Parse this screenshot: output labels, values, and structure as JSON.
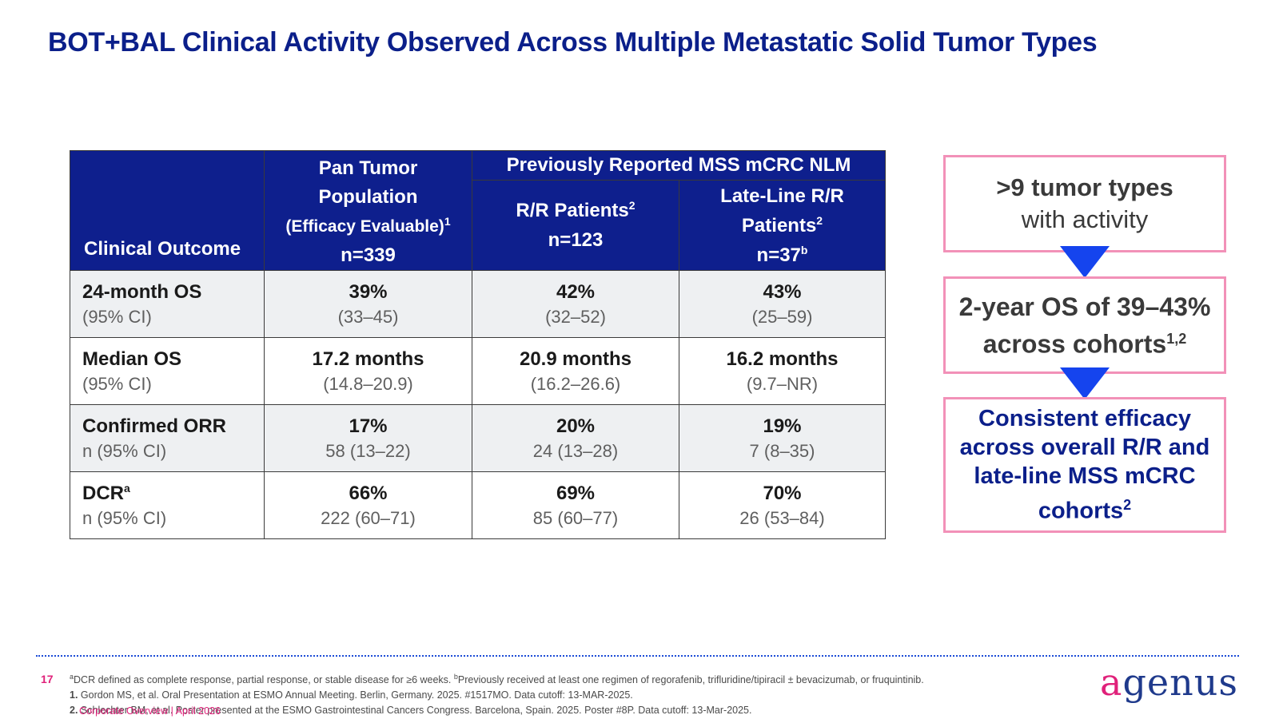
{
  "title": "BOT+BAL Clinical Activity Observed Across Multiple Metastatic Solid Tumor Types",
  "table": {
    "header": {
      "outcome": "Clinical Outcome",
      "pan_tumor": {
        "line1": "Pan Tumor",
        "line2": "Population",
        "line3": "(Efficacy Evaluable)",
        "line3_sup": "1",
        "n": "n=339"
      },
      "group": "Previously Reported MSS mCRC NLM",
      "rr": {
        "line1": "R/R Patients",
        "line1_sup": "2",
        "n": "n=123"
      },
      "late": {
        "line1": "Late-Line R/R",
        "line2": "Patients",
        "line2_sup": "2",
        "n": "n=37",
        "n_sup": "b"
      }
    },
    "rows": [
      {
        "label": "24-month OS",
        "sublabel": "(95% CI)",
        "label_sup": "",
        "pan": {
          "main": "39%",
          "ci": "(33–45)"
        },
        "rr": {
          "main": "42%",
          "ci": "(32–52)"
        },
        "late": {
          "main": "43%",
          "ci": "(25–59)"
        }
      },
      {
        "label": "Median OS",
        "sublabel": "(95% CI)",
        "label_sup": "",
        "pan": {
          "main": "17.2 months",
          "ci": "(14.8–20.9)"
        },
        "rr": {
          "main": "20.9 months",
          "ci": "(16.2–26.6)"
        },
        "late": {
          "main": "16.2 months",
          "ci": "(9.7–NR)"
        }
      },
      {
        "label": "Confirmed ORR",
        "sublabel": "n (95% CI)",
        "label_sup": "",
        "pan": {
          "main": "17%",
          "ci": "58 (13–22)"
        },
        "rr": {
          "main": "20%",
          "ci": "24 (13–28)"
        },
        "late": {
          "main": "19%",
          "ci": "7 (8–35)"
        }
      },
      {
        "label": "DCR",
        "sublabel": "n (95% CI)",
        "label_sup": "a",
        "pan": {
          "main": "66%",
          "ci": "222 (60–71)"
        },
        "rr": {
          "main": "69%",
          "ci": "85 (60–77)"
        },
        "late": {
          "main": "70%",
          "ci": "26 (53–84)"
        }
      }
    ]
  },
  "callouts": {
    "first": {
      "line1": ">9 tumor types",
      "line2": "with activity"
    },
    "second": {
      "line1": "2-year OS of 39–43%",
      "line2": "across cohorts",
      "line2_sup": "1,2"
    },
    "third": {
      "text": "Consistent efficacy across overall R/R and late-line MSS mCRC cohorts",
      "sup": "2"
    }
  },
  "footer": {
    "page_number": "17",
    "note_a_sup": "a",
    "note_a": "DCR defined as complete response, partial response, or stable disease for ≥6 weeks. ",
    "note_b_sup": "b",
    "note_b": "Previously received at least one regimen of regorafenib, trifluridine/tipiracil ± bevacizumab, or fruquintinib.",
    "ref1_num": "1.",
    "ref1": " Gordon MS, et al. Oral Presentation at ESMO Annual Meeting. Berlin, Germany. 2025. #1517MO. Data cutoff: 13-MAR-2025.",
    "ref2_num": "2.",
    "ref2": " Schlechter BM, et al. Poster presented at the ESMO Gastrointestinal Cancers Congress. Barcelona, Spain. 2025. Poster #8P. Data cutoff: 13-Mar-2025.",
    "corporate": "Corporate Overview | April 2026",
    "logo_first": "a",
    "logo_rest": "genus"
  },
  "colors": {
    "brand_blue": "#0b1f8a",
    "header_fill": "#0e1f8d",
    "callout_border": "#f291b8",
    "arrow": "#1544ee",
    "accent_pink": "#e0217a"
  }
}
